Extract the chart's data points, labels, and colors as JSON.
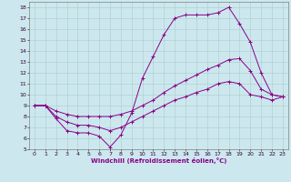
{
  "xlabel": "Windchill (Refroidissement éolien,°C)",
  "background_color": "#cce8ee",
  "grid_color": "#aacccc",
  "line_color": "#880088",
  "xlim": [
    -0.5,
    23.5
  ],
  "ylim": [
    5,
    18.5
  ],
  "xtick_labels": [
    "0",
    "1",
    "2",
    "3",
    "4",
    "5",
    "6",
    "7",
    "8",
    "9",
    "10",
    "11",
    "12",
    "13",
    "14",
    "15",
    "16",
    "17",
    "18",
    "19",
    "20",
    "21",
    "22",
    "23"
  ],
  "xtick_vals": [
    0,
    1,
    2,
    3,
    4,
    5,
    6,
    7,
    8,
    9,
    10,
    11,
    12,
    13,
    14,
    15,
    16,
    17,
    18,
    19,
    20,
    21,
    22,
    23
  ],
  "ytick_vals": [
    5,
    6,
    7,
    8,
    9,
    10,
    11,
    12,
    13,
    14,
    15,
    16,
    17,
    18
  ],
  "ytick_labels": [
    "5",
    "6",
    "7",
    "8",
    "9",
    "10",
    "11",
    "12",
    "13",
    "14",
    "15",
    "16",
    "17",
    "18"
  ],
  "line1_x": [
    0,
    1,
    2,
    3,
    4,
    5,
    6,
    7,
    8,
    9,
    10,
    11,
    12,
    13,
    14,
    15,
    16,
    17,
    18,
    19,
    20,
    21,
    22,
    23
  ],
  "line1_y": [
    9.0,
    9.0,
    7.8,
    6.7,
    6.5,
    6.5,
    6.2,
    5.2,
    6.3,
    8.3,
    11.5,
    13.5,
    15.5,
    17.0,
    17.3,
    17.3,
    17.3,
    17.5,
    18.0,
    16.5,
    14.8,
    12.0,
    10.0,
    9.8
  ],
  "line2_x": [
    0,
    1,
    2,
    3,
    4,
    5,
    6,
    7,
    8,
    9,
    10,
    11,
    12,
    13,
    14,
    15,
    16,
    17,
    18,
    19,
    20,
    21,
    22,
    23
  ],
  "line2_y": [
    9.0,
    9.0,
    8.5,
    8.2,
    8.0,
    8.0,
    8.0,
    8.0,
    8.2,
    8.5,
    9.0,
    9.5,
    10.2,
    10.8,
    11.3,
    11.8,
    12.3,
    12.7,
    13.2,
    13.3,
    12.2,
    10.5,
    10.0,
    9.8
  ],
  "line3_x": [
    0,
    1,
    2,
    3,
    4,
    5,
    6,
    7,
    8,
    9,
    10,
    11,
    12,
    13,
    14,
    15,
    16,
    17,
    18,
    19,
    20,
    21,
    22,
    23
  ],
  "line3_y": [
    9.0,
    9.0,
    8.0,
    7.5,
    7.2,
    7.2,
    7.0,
    6.7,
    7.0,
    7.5,
    8.0,
    8.5,
    9.0,
    9.5,
    9.8,
    10.2,
    10.5,
    11.0,
    11.2,
    11.0,
    10.0,
    9.8,
    9.5,
    9.8
  ]
}
